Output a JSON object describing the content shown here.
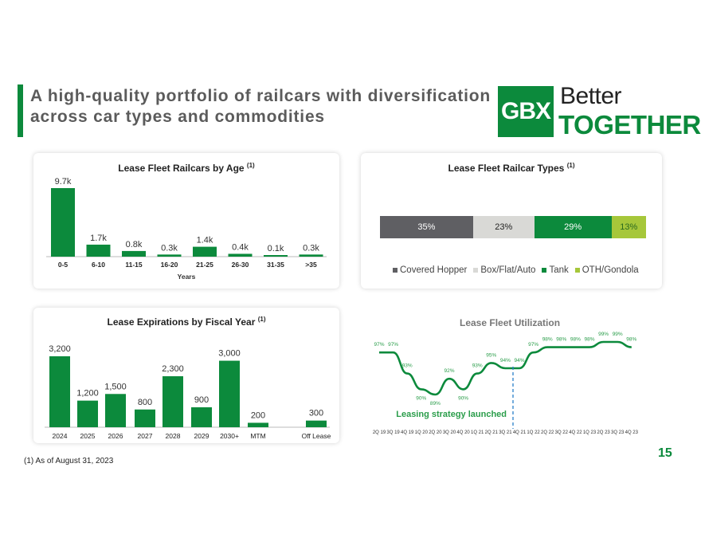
{
  "page": {
    "title": "A high-quality portfolio of railcars with diversification across car types and commodities",
    "logo": {
      "mark": "GBX",
      "line1": "Better",
      "line2": "TOGETHER"
    },
    "footnote": "(1) As of August 31, 2023",
    "page_number": "15",
    "colors": {
      "brand_green": "#0c8a3c",
      "dark_gray": "#5f5f63",
      "light_gray": "#d9d9d6",
      "lime": "#a6c73a",
      "title_gray": "#5b5b5b"
    }
  },
  "chart_data": [
    {
      "type": "bar",
      "title": "Lease Fleet Railcars by Age",
      "title_note": "(1)",
      "xlabel": "Years",
      "categories": [
        "0-5",
        "6-10",
        "11-15",
        "16-20",
        "21-25",
        "26-30",
        "31-35",
        ">35"
      ],
      "values": [
        9.7,
        1.7,
        0.8,
        0.3,
        1.4,
        0.4,
        0.1,
        0.3
      ],
      "data_labels": [
        "9.7k",
        "1.7k",
        "0.8k",
        "0.3k",
        "1.4k",
        "0.4k",
        "0.1k",
        "0.3k"
      ],
      "unit": "k",
      "color": "#0c8a3c"
    },
    {
      "type": "bar",
      "stacked": true,
      "title": "Lease Fleet Railcar Types",
      "title_note": "(1)",
      "series": [
        {
          "name": "Covered Hopper",
          "values": [
            35
          ],
          "label": "35%",
          "color": "#5f5f63",
          "text_color": "#ffffff"
        },
        {
          "name": "Box/Flat/Auto",
          "values": [
            23
          ],
          "label": "23%",
          "color": "#d9d9d6",
          "text_color": "#222222"
        },
        {
          "name": "Tank",
          "values": [
            29
          ],
          "label": "29%",
          "color": "#0c8a3c",
          "text_color": "#ffffff"
        },
        {
          "name": "OTH/Gondola",
          "values": [
            13
          ],
          "label": "13%",
          "color": "#a6c73a",
          "text_color": "#2b6a1f"
        }
      ],
      "legend_position": "bottom"
    },
    {
      "type": "bar",
      "title": "Lease Expirations by Fiscal Year",
      "title_note": "(1)",
      "categories": [
        "2024",
        "2025",
        "2026",
        "2027",
        "2028",
        "2029",
        "2030+",
        "MTM",
        "Off Lease"
      ],
      "values": [
        3200,
        1200,
        1500,
        800,
        2300,
        900,
        3000,
        200,
        300
      ],
      "data_labels": [
        "3,200",
        "1,200",
        "1,500",
        "800",
        "2,300",
        "900",
        "3,000",
        "200",
        "300"
      ],
      "color": "#0c8a3c"
    },
    {
      "type": "line",
      "title": "Lease Fleet Utilization",
      "categories": [
        "2Q 19",
        "3Q 19",
        "4Q 19",
        "1Q 20",
        "2Q 20",
        "3Q 20",
        "4Q 20",
        "1Q 21",
        "2Q 21",
        "3Q 21",
        "4Q 21",
        "1Q 22",
        "2Q 22",
        "3Q 22",
        "4Q 22",
        "1Q 23",
        "2Q 23",
        "3Q 23",
        "4Q 23"
      ],
      "values": [
        97,
        97,
        93,
        90,
        89,
        92,
        90,
        93,
        95,
        94,
        94,
        97,
        98,
        98,
        98,
        98,
        99,
        99,
        98
      ],
      "data_labels": [
        "97%",
        "97%",
        "93%",
        "90%",
        "89%",
        "92%",
        "90%",
        "93%",
        "95%",
        "94%",
        "94%",
        "97%",
        "98%",
        "98%",
        "98%",
        "98%",
        "99%",
        "99%",
        "98%"
      ],
      "annotation": {
        "text": "Leasing strategy launched",
        "at_category": "4Q 21"
      },
      "color": "#0c8a3c"
    }
  ]
}
